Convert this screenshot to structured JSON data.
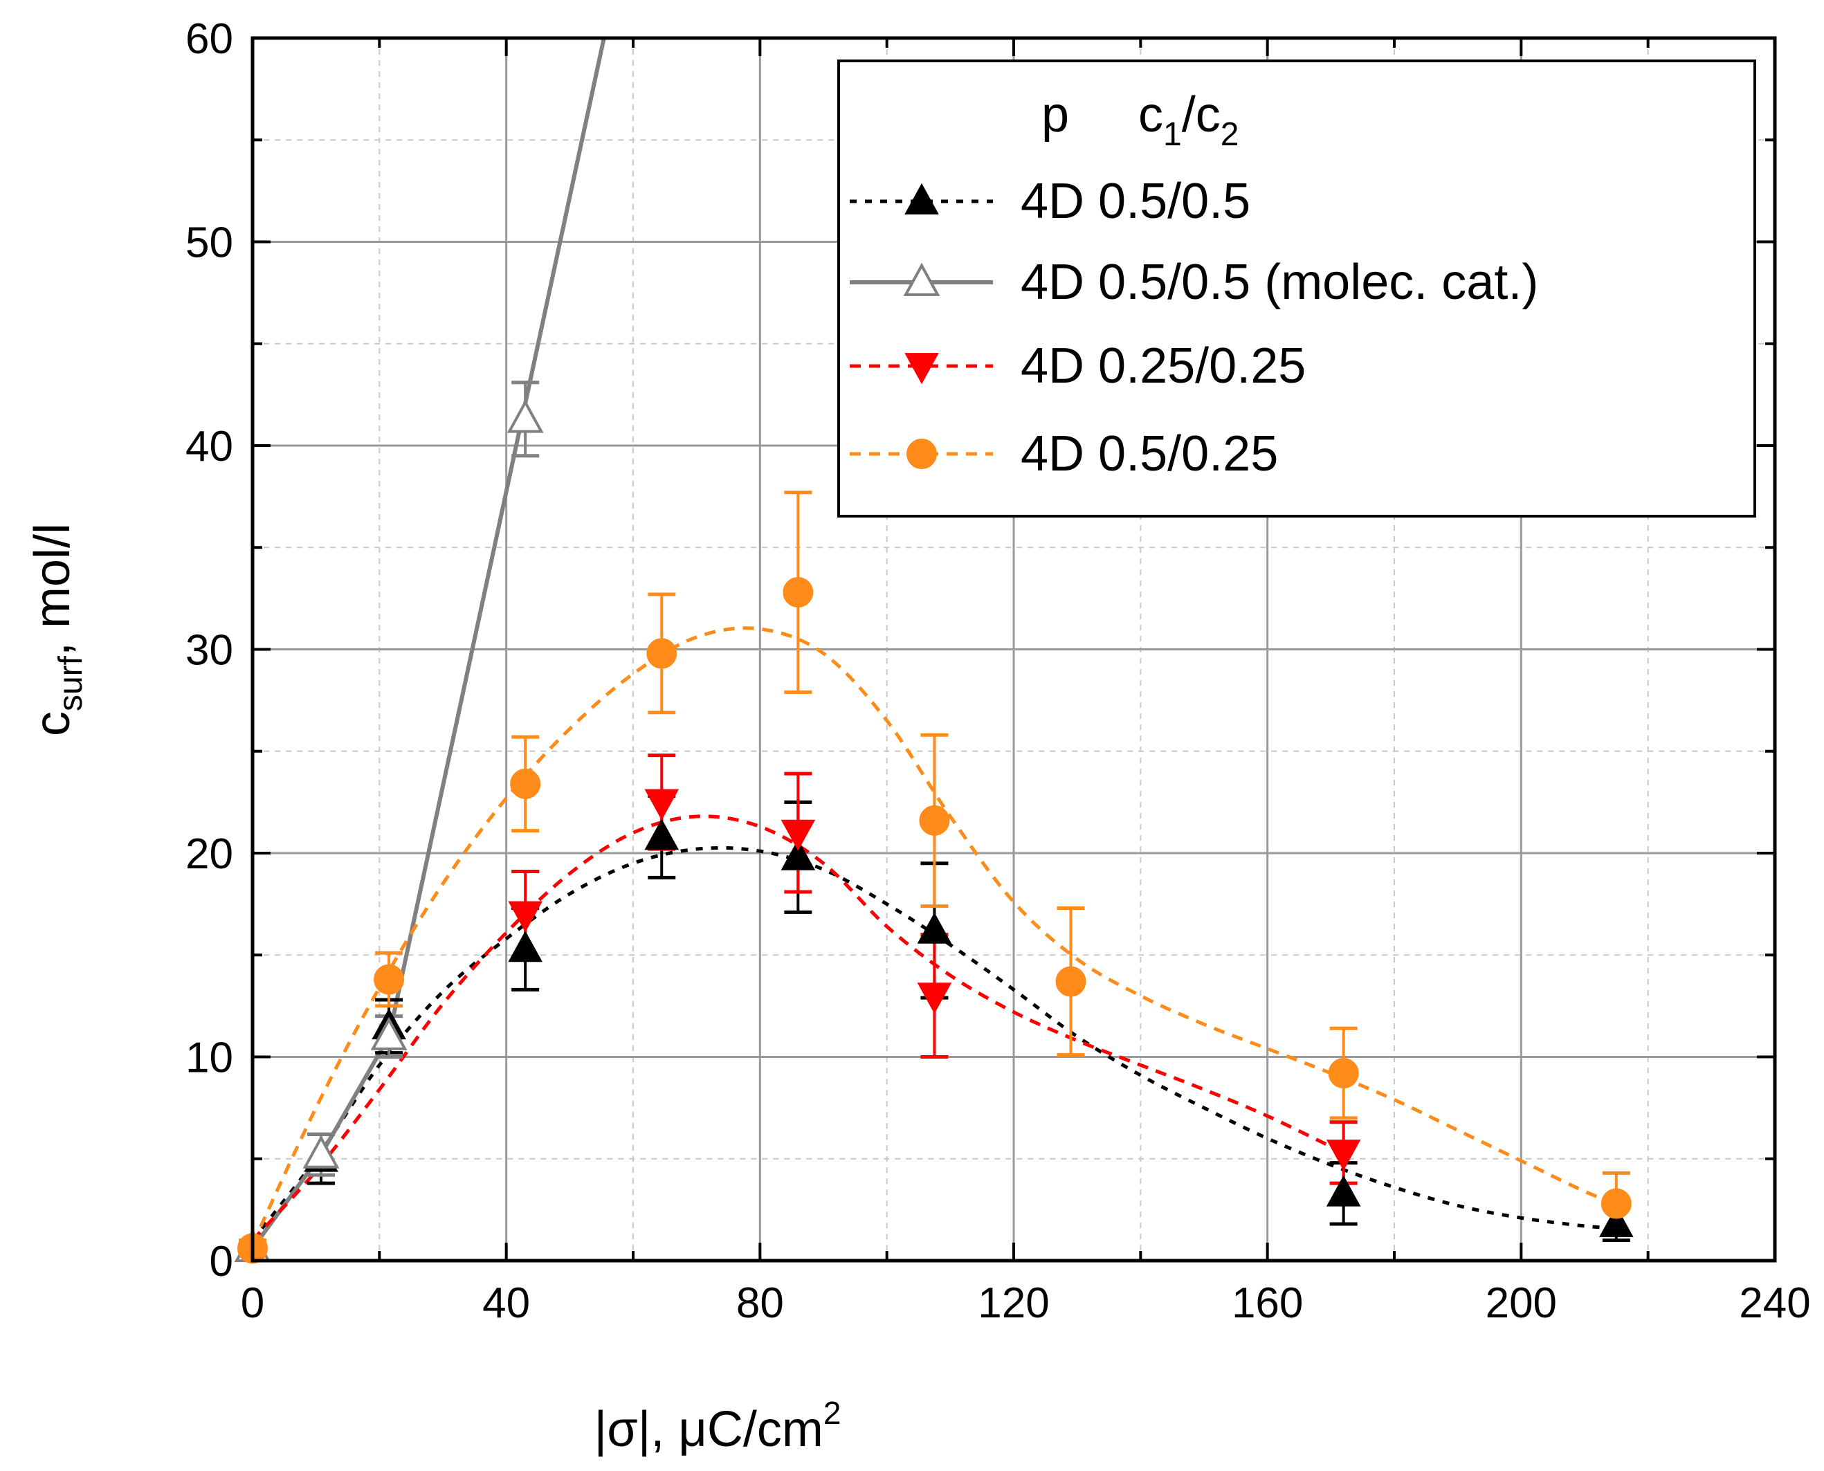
{
  "chart_data": {
    "type": "scatter",
    "xlabel": {
      "prefix": "|σ|, μC/cm",
      "sup": "2"
    },
    "ylabel": {
      "main": "c",
      "sub": "surf",
      "suffix": ", mol/l"
    },
    "xlim": [
      0,
      240
    ],
    "ylim": [
      0,
      60
    ],
    "x_ticks": [
      0,
      40,
      80,
      120,
      160,
      200,
      240
    ],
    "y_ticks": [
      0,
      10,
      20,
      30,
      40,
      50,
      60
    ],
    "x_minor_step": 20,
    "y_minor_step": 5,
    "grid": true,
    "legend": {
      "placement": "top-right",
      "header": {
        "p": "p",
        "c_main1": "c",
        "c_sub1": "1",
        "slash": "/",
        "c_main2": "c",
        "c_sub2": "2"
      },
      "entries": [
        {
          "series": 0,
          "label": "4D 0.5/0.5"
        },
        {
          "series": 1,
          "label": "4D 0.5/0.5 (molec. cat.)"
        },
        {
          "series": 2,
          "label": "4D 0.25/0.25"
        },
        {
          "series": 3,
          "label": "4D 0.5/0.25"
        }
      ]
    },
    "series": [
      {
        "name": "4D 0.5/0.5",
        "color": "#000000",
        "marker": "triangle-up",
        "filled": true,
        "line": "dotted",
        "x": [
          10.8,
          21.5,
          43,
          64.5,
          86,
          107.5,
          172,
          215
        ],
        "y": [
          5.0,
          11.5,
          15.3,
          20.8,
          19.8,
          16.2,
          3.3,
          1.8
        ],
        "err": [
          1.2,
          1.3,
          2.0,
          2.0,
          2.7,
          3.3,
          1.5,
          0.8
        ],
        "fit": [
          [
            0,
            1.0
          ],
          [
            10,
            5.0
          ],
          [
            20,
            9.6
          ],
          [
            30,
            13.2
          ],
          [
            40,
            15.8
          ],
          [
            50,
            18.0
          ],
          [
            60,
            19.5
          ],
          [
            70,
            20.2
          ],
          [
            80,
            20.1
          ],
          [
            90,
            19.2
          ],
          [
            100,
            17.5
          ],
          [
            110,
            15.5
          ],
          [
            120,
            13.3
          ],
          [
            130,
            11.0
          ],
          [
            140,
            9.1
          ],
          [
            150,
            7.5
          ],
          [
            160,
            6.0
          ],
          [
            170,
            4.7
          ],
          [
            180,
            3.6
          ],
          [
            190,
            2.7
          ],
          [
            200,
            2.1
          ],
          [
            210,
            1.7
          ],
          [
            215,
            1.6
          ]
        ]
      },
      {
        "name": "4D 0.5/0.5 (molec. cat.)",
        "color": "#808080",
        "marker": "triangle-up",
        "filled": false,
        "line": "solid",
        "x": [
          0,
          10.8,
          21.5,
          43
        ],
        "y": [
          0.6,
          5.2,
          11.0,
          41.3
        ],
        "err": [
          0.3,
          1.0,
          1.0,
          1.8
        ],
        "fit": [
          [
            0,
            0.6
          ],
          [
            10.8,
            5.2
          ],
          [
            21.5,
            11.0
          ],
          [
            55.4,
            60
          ]
        ]
      },
      {
        "name": "4D 0.25/0.25",
        "color": "#ff0000",
        "marker": "triangle-down",
        "filled": true,
        "line": "dashed",
        "x": [
          43,
          64.5,
          86,
          107.5,
          172
        ],
        "y": [
          17.0,
          22.5,
          21.0,
          13.0,
          5.3
        ],
        "err": [
          2.1,
          2.3,
          2.9,
          3.0,
          1.5
        ],
        "fit": [
          [
            0,
            1.0
          ],
          [
            10,
            4.4
          ],
          [
            20,
            8.4
          ],
          [
            30,
            12.6
          ],
          [
            40,
            16.1
          ],
          [
            50,
            19.0
          ],
          [
            60,
            21.0
          ],
          [
            70,
            21.8
          ],
          [
            80,
            21.3
          ],
          [
            90,
            19.5
          ],
          [
            100,
            16.4
          ],
          [
            110,
            14.0
          ],
          [
            120,
            12.2
          ],
          [
            130,
            10.8
          ],
          [
            140,
            9.6
          ],
          [
            150,
            8.4
          ],
          [
            160,
            7.1
          ],
          [
            170,
            5.6
          ],
          [
            172,
            5.3
          ]
        ]
      },
      {
        "name": "4D 0.5/0.25",
        "color": "#ff8c1a",
        "marker": "circle",
        "filled": true,
        "line": "dashed",
        "x": [
          0,
          21.5,
          43,
          64.5,
          86,
          107.5,
          129,
          172,
          215
        ],
        "y": [
          0.6,
          13.8,
          23.4,
          29.8,
          32.8,
          21.6,
          13.7,
          9.2,
          2.8
        ],
        "err": [
          0.4,
          1.3,
          2.3,
          2.9,
          4.9,
          4.2,
          3.6,
          2.2,
          1.5
        ],
        "fit": [
          [
            0,
            0.8
          ],
          [
            10,
            7.5
          ],
          [
            20,
            13.4
          ],
          [
            30,
            18.5
          ],
          [
            40,
            22.7
          ],
          [
            50,
            26.1
          ],
          [
            60,
            28.8
          ],
          [
            70,
            30.6
          ],
          [
            80,
            31.0
          ],
          [
            90,
            29.8
          ],
          [
            100,
            26.5
          ],
          [
            110,
            21.8
          ],
          [
            120,
            17.6
          ],
          [
            130,
            14.8
          ],
          [
            140,
            13.0
          ],
          [
            150,
            11.6
          ],
          [
            160,
            10.4
          ],
          [
            170,
            9.2
          ],
          [
            180,
            7.9
          ],
          [
            190,
            6.4
          ],
          [
            200,
            4.9
          ],
          [
            210,
            3.4
          ],
          [
            215,
            2.8
          ]
        ]
      }
    ]
  }
}
